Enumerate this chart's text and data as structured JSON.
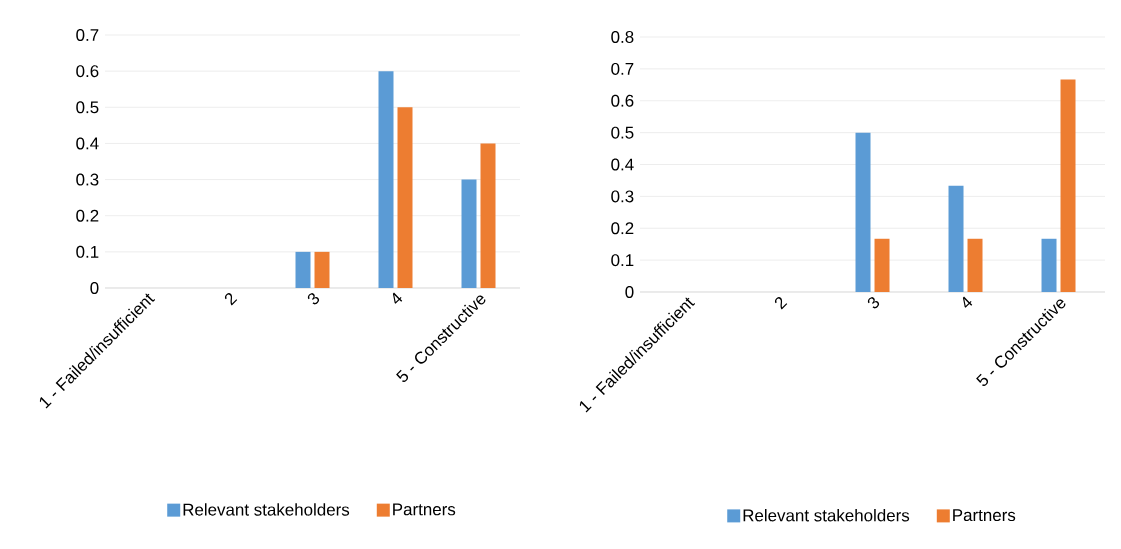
{
  "chart_data": [
    {
      "type": "bar",
      "categories": [
        "1 - Failed/insufficient",
        "2",
        "3",
        "4",
        "5 - Constructive"
      ],
      "series": [
        {
          "name": "Relevant stakeholders",
          "color": "#5b9bd5",
          "values": [
            0,
            0,
            0.1,
            0.6,
            0.3
          ]
        },
        {
          "name": "Partners",
          "color": "#ed7d31",
          "values": [
            0,
            0,
            0.1,
            0.5,
            0.4
          ]
        }
      ],
      "ylim": [
        0,
        0.7
      ],
      "yticks": [
        0,
        0.1,
        0.2,
        0.3,
        0.4,
        0.5,
        0.6,
        0.7
      ],
      "grid": "y",
      "legend": "bottom"
    },
    {
      "type": "bar",
      "categories": [
        "1 - Failed/insufficient",
        "2",
        "3",
        "4",
        "5 - Constructive"
      ],
      "series": [
        {
          "name": "Relevant stakeholders",
          "color": "#5b9bd5",
          "values": [
            0,
            0,
            0.5,
            0.333,
            0.167
          ]
        },
        {
          "name": "Partners",
          "color": "#ed7d31",
          "values": [
            0,
            0,
            0.167,
            0.167,
            0.667
          ]
        }
      ],
      "ylim": [
        0,
        0.8
      ],
      "yticks": [
        0,
        0.1,
        0.2,
        0.3,
        0.4,
        0.5,
        0.6,
        0.7,
        0.8
      ],
      "grid": "y",
      "legend": "bottom"
    }
  ]
}
